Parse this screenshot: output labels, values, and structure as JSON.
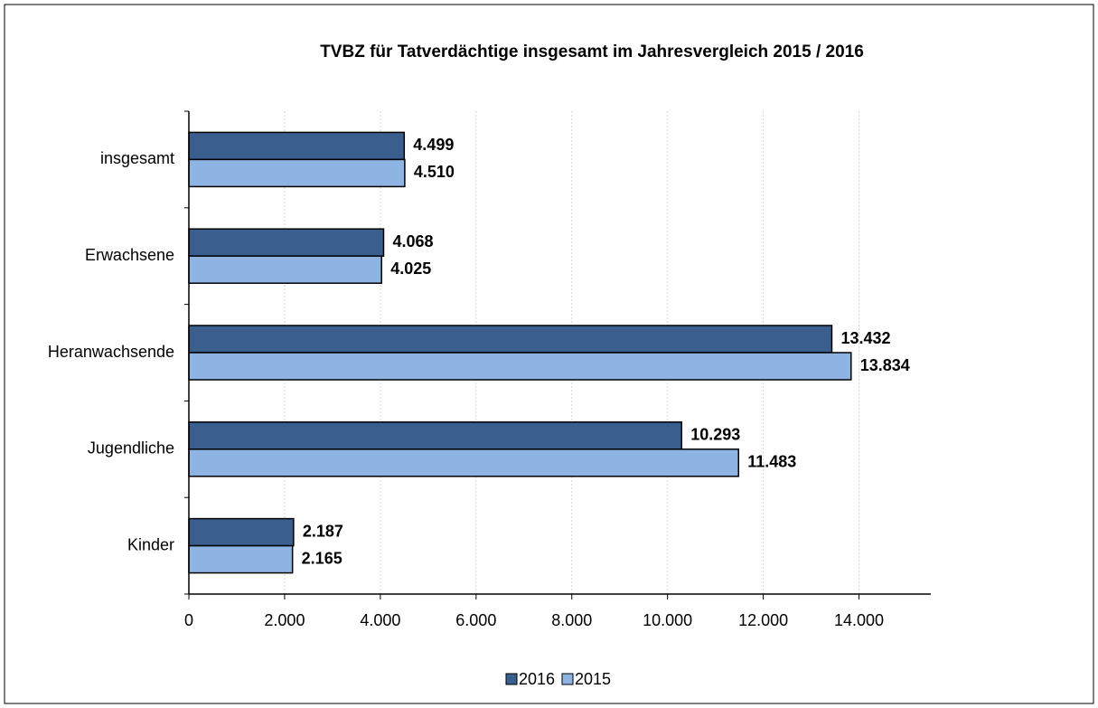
{
  "chart_data": {
    "type": "hbar",
    "title": "TVBZ für Tatverdächtige insgesamt im Jahresvergleich 2015 / 2016",
    "categories": [
      "insgesamt",
      "Erwachsene",
      "Heranwachsende",
      "Jugendliche",
      "Kinder"
    ],
    "series": [
      {
        "name": "2016",
        "color": "#3a5f8f",
        "values": [
          4499,
          4068,
          13432,
          10293,
          2187
        ],
        "value_labels": [
          "4.499",
          "4.068",
          "13.432",
          "10.293",
          "2.187"
        ]
      },
      {
        "name": "2015",
        "color": "#8db4e2",
        "values": [
          4510,
          4025,
          13834,
          11483,
          2165
        ],
        "value_labels": [
          "4.510",
          "4.025",
          "13.834",
          "11.483",
          "2.165"
        ]
      }
    ],
    "xlim": [
      0,
      15500
    ],
    "xticks": [
      0,
      {
        "value": 2000,
        "label": "2.000"
      },
      {
        "value": 4000,
        "label": "4.000"
      },
      {
        "value": 6000,
        "label": "6.000"
      },
      {
        "value": 8000,
        "label": "8.000"
      },
      {
        "value": 10000,
        "label": "10.000"
      },
      {
        "value": 12000,
        "label": "12.000"
      },
      {
        "value": 14000,
        "label": "14.000"
      }
    ],
    "grid": true,
    "legend": "bottom"
  }
}
